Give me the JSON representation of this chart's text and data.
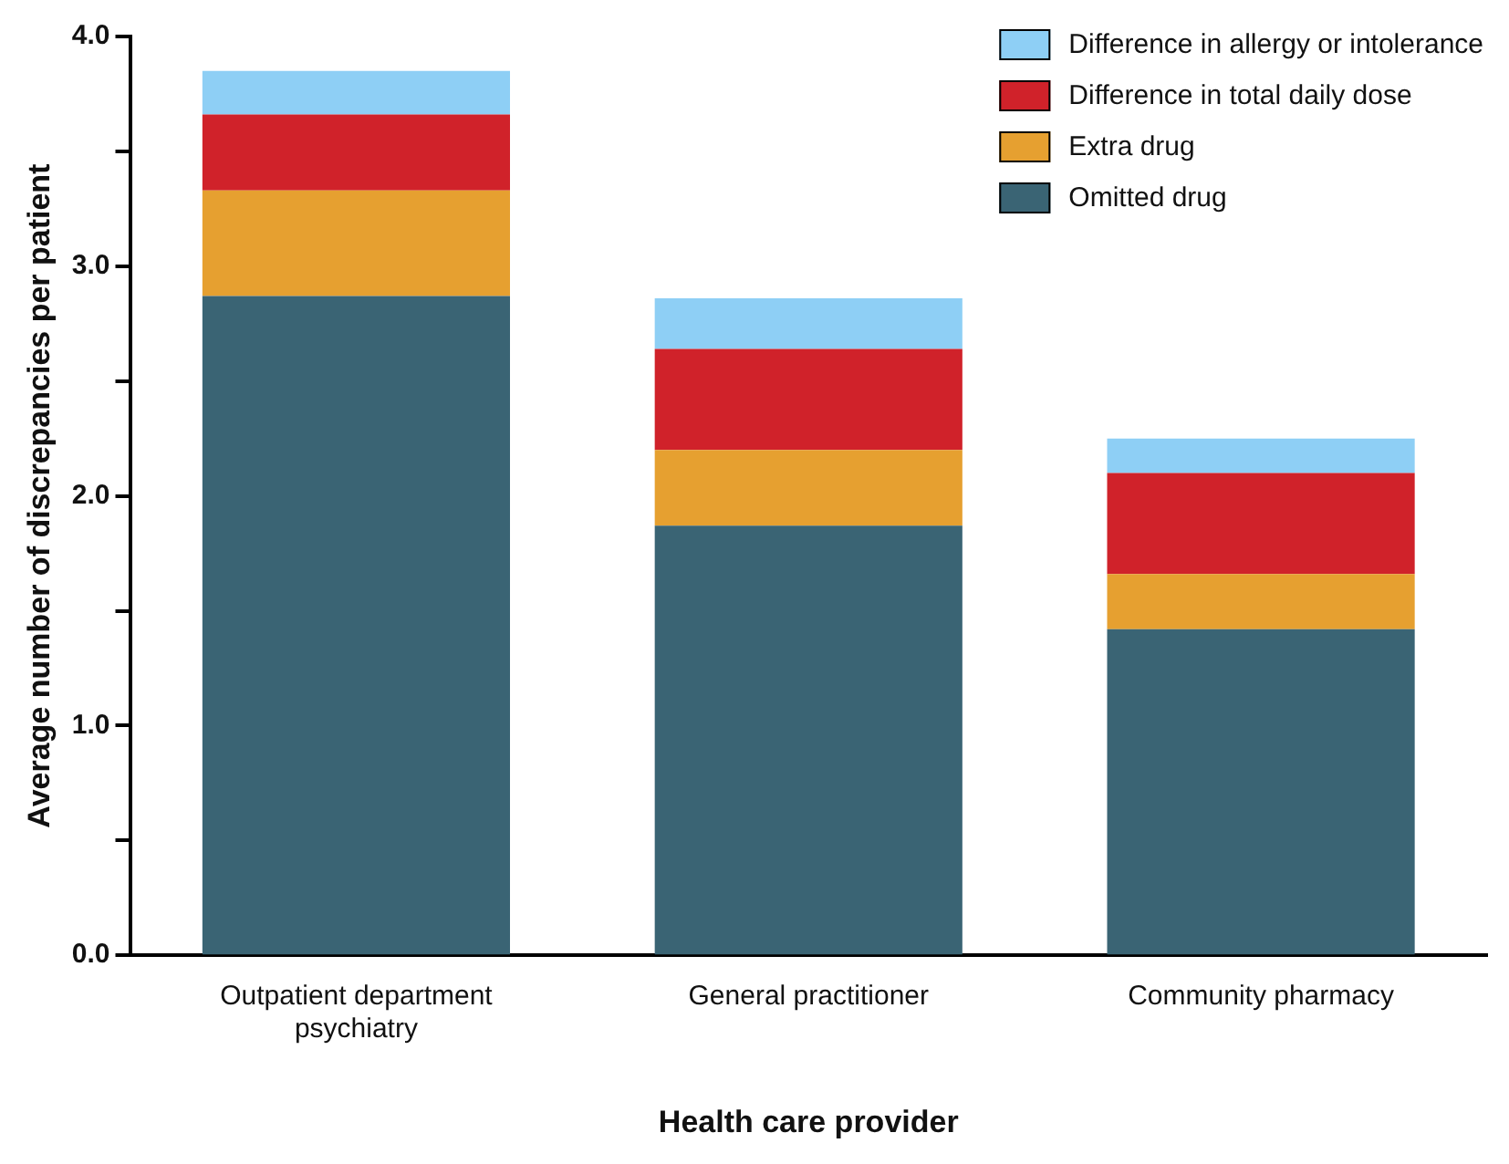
{
  "chart_data": {
    "type": "bar",
    "stacked": true,
    "xlabel": "Health care provider",
    "ylabel": "Average number of discrepancies per patient",
    "categories": [
      "Outpatient department psychiatry",
      "General practitioner",
      "Community pharmacy"
    ],
    "series": [
      {
        "name": "Omitted drug",
        "color": "#3a6474",
        "values": [
          2.87,
          1.87,
          1.42
        ]
      },
      {
        "name": "Extra drug",
        "color": "#e6a030",
        "values": [
          0.46,
          0.33,
          0.24
        ]
      },
      {
        "name": "Difference in total daily dose",
        "color": "#d0222a",
        "values": [
          0.33,
          0.44,
          0.44
        ]
      },
      {
        "name": "Difference in allergy or intolerance",
        "color": "#8ecff5",
        "values": [
          0.19,
          0.22,
          0.15
        ]
      }
    ],
    "ylim": [
      0,
      4
    ],
    "yticks": [
      {
        "value": 0,
        "label": "0.0"
      },
      {
        "value": 0.5,
        "label": null
      },
      {
        "value": 1,
        "label": "1.0"
      },
      {
        "value": 1.5,
        "label": null
      },
      {
        "value": 2,
        "label": "2.0"
      },
      {
        "value": 2.5,
        "label": null
      },
      {
        "value": 3,
        "label": "3.0"
      },
      {
        "value": 3.5,
        "label": null
      },
      {
        "value": 4,
        "label": "4.0"
      }
    ],
    "grid": false,
    "legend": "top right"
  }
}
